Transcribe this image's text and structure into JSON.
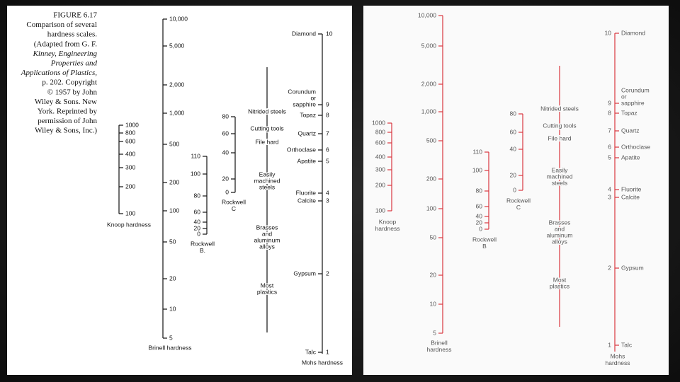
{
  "left_panel": {
    "caption": [
      "FIGURE 6.17",
      "Comparison of several",
      "hardness scales.",
      "(Adapted from G. F.",
      "Kinney, Engineering",
      "Properties and",
      "Applications of Plastics,",
      "p. 202. Copyright",
      "© 1957 by John",
      "Wiley & Sons. New",
      "York. Reprinted by",
      "permission of John",
      "Wiley & Sons, Inc.)"
    ],
    "knoop": {
      "ticks": [
        "1000",
        "800",
        "600",
        "400",
        "300",
        "200",
        "100"
      ],
      "label": [
        "Knoop hardness"
      ]
    },
    "brinell": {
      "ticks": [
        "10,000",
        "5,000",
        "2,000",
        "1,000",
        "500",
        "200",
        "100",
        "50",
        "20",
        "10",
        "5"
      ],
      "label": [
        "Brinell hardness"
      ]
    },
    "rockwell_b": {
      "ticks": [
        "110",
        "100",
        "80",
        "60",
        "40",
        "20",
        "0"
      ],
      "label": [
        "Rockwell",
        "B."
      ]
    },
    "rockwell_c": {
      "ticks": [
        "80",
        "60",
        "40",
        "20",
        "0"
      ],
      "label": [
        "Rockwell",
        "C"
      ]
    },
    "materials": [
      [
        "Nitrided steels"
      ],
      [
        "Cutting tools"
      ],
      [
        "File hard"
      ],
      [
        "Easily",
        "machined",
        "steels"
      ],
      [
        "Brasses",
        "and",
        "aluminum",
        "alloys"
      ],
      [
        "Most",
        "plastics"
      ]
    ],
    "mohs": {
      "minerals": [
        {
          "number": "10",
          "name": [
            "Diamond"
          ]
        },
        {
          "number": "9",
          "name": [
            "Corundum",
            "or",
            "sapphire"
          ]
        },
        {
          "number": "8",
          "name": [
            "Topaz"
          ]
        },
        {
          "number": "7",
          "name": [
            "Quartz"
          ]
        },
        {
          "number": "6",
          "name": [
            "Orthoclase"
          ]
        },
        {
          "number": "5",
          "name": [
            "Apatite"
          ]
        },
        {
          "number": "4",
          "name": [
            "Fluorite"
          ]
        },
        {
          "number": "3",
          "name": [
            "Calcite"
          ]
        },
        {
          "number": "2",
          "name": [
            "Gypsum"
          ]
        },
        {
          "number": "1",
          "name": [
            "Talc"
          ]
        }
      ],
      "label": [
        "Mohs hardness"
      ]
    }
  },
  "right_panel": {
    "knoop": {
      "ticks": [
        "1000",
        "800",
        "600",
        "400",
        "300",
        "200",
        "100"
      ],
      "label": [
        "Knoop",
        "hardness"
      ]
    },
    "brinell": {
      "ticks": [
        "10,000",
        "5,000",
        "2,000",
        "1,000",
        "500",
        "200",
        "100",
        "50",
        "20",
        "10",
        "5"
      ],
      "label": [
        "Brinell",
        "hardness"
      ]
    },
    "rockwell_b": {
      "ticks": [
        "110",
        "100",
        "80",
        "60",
        "40",
        "20",
        "0"
      ],
      "label": [
        "Rockwell",
        "B"
      ]
    },
    "rockwell_c": {
      "ticks": [
        "80",
        "60",
        "40",
        "20",
        "0"
      ],
      "label": [
        "Rockwell",
        "C"
      ]
    },
    "materials": [
      [
        "Nitrided steels"
      ],
      [
        "Cutting tools"
      ],
      [
        "File hard"
      ],
      [
        "Easily",
        "machined",
        "steels"
      ],
      [
        "Brasses",
        "and",
        "aluminum",
        "alloys"
      ],
      [
        "Most",
        "plastics"
      ]
    ],
    "mohs": {
      "minerals": [
        {
          "number": "10",
          "name": [
            "Diamond"
          ]
        },
        {
          "number": "9",
          "name": [
            "Corundum",
            "or",
            "sapphire"
          ]
        },
        {
          "number": "8",
          "name": [
            "Topaz"
          ]
        },
        {
          "number": "7",
          "name": [
            "Quartz"
          ]
        },
        {
          "number": "6",
          "name": [
            "Orthoclase"
          ]
        },
        {
          "number": "5",
          "name": [
            "Apatite"
          ]
        },
        {
          "number": "4",
          "name": [
            "Fluorite"
          ]
        },
        {
          "number": "3",
          "name": [
            "Calcite"
          ]
        },
        {
          "number": "2",
          "name": [
            "Gypsum"
          ]
        },
        {
          "number": "1",
          "name": [
            "Talc"
          ]
        }
      ],
      "label": [
        "Mohs",
        "hardness"
      ]
    }
  }
}
